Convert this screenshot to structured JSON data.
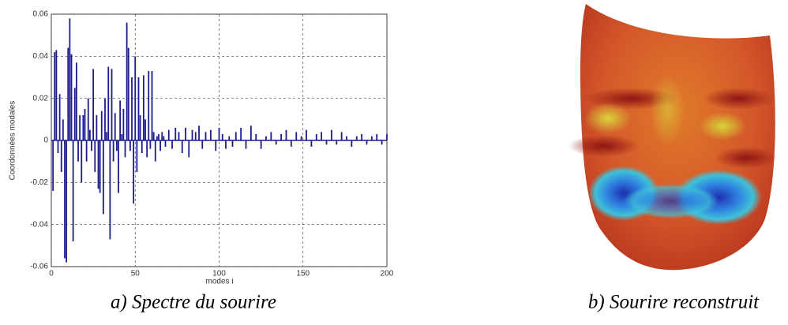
{
  "chart_data": {
    "type": "stem",
    "xlabel": "modes i",
    "ylabel": "Coordonnées modales",
    "x": [
      1,
      2,
      3,
      4,
      5,
      6,
      7,
      8,
      9,
      10,
      11,
      12,
      13,
      14,
      15,
      16,
      17,
      18,
      19,
      20,
      21,
      22,
      23,
      24,
      25,
      26,
      27,
      28,
      29,
      30,
      31,
      32,
      33,
      34,
      35,
      36,
      37,
      38,
      39,
      40,
      41,
      42,
      43,
      44,
      45,
      46,
      47,
      48,
      49,
      50,
      51,
      52,
      53,
      54,
      55,
      56,
      57,
      58,
      59,
      60,
      61,
      62,
      63,
      64,
      65,
      66,
      67,
      68,
      70,
      72,
      74,
      76,
      78,
      80,
      82,
      84,
      86,
      88,
      90,
      92,
      95,
      98,
      100,
      102,
      104,
      106,
      108,
      110,
      113,
      116,
      119,
      122,
      125,
      128,
      131,
      134,
      137,
      140,
      143,
      146,
      149,
      152,
      155,
      158,
      161,
      164,
      167,
      170,
      173,
      176,
      179,
      182,
      185,
      188,
      191,
      194,
      197,
      200
    ],
    "values": [
      -0.024,
      0.042,
      0.043,
      -0.006,
      0.022,
      -0.015,
      0.01,
      -0.056,
      -0.058,
      0.044,
      0.058,
      0.041,
      -0.048,
      0.025,
      0.037,
      -0.01,
      0.012,
      -0.02,
      0.012,
      0.015,
      -0.01,
      0.02,
      0.005,
      -0.005,
      0.034,
      -0.015,
      0.012,
      -0.023,
      -0.025,
      0.014,
      -0.035,
      0.02,
      0.004,
      0.035,
      -0.047,
      0.034,
      -0.01,
      0.013,
      -0.005,
      -0.025,
      0.019,
      0.003,
      0.015,
      -0.008,
      0.056,
      0.044,
      -0.005,
      0.03,
      -0.03,
      0.04,
      -0.015,
      0.03,
      0.012,
      -0.006,
      0.031,
      0.01,
      -0.008,
      0.033,
      -0.004,
      0.033,
      0.004,
      -0.01,
      0.002,
      0.003,
      -0.005,
      0.004,
      0.002,
      -0.003,
      0.005,
      -0.004,
      0.006,
      0.004,
      -0.006,
      0.006,
      -0.008,
      0.005,
      0.004,
      0.007,
      -0.004,
      0.004,
      0.005,
      -0.005,
      0.006,
      0.003,
      -0.004,
      0.002,
      -0.003,
      0.004,
      0.006,
      -0.004,
      0.007,
      0.003,
      -0.004,
      0.002,
      0.004,
      -0.002,
      0.003,
      0.005,
      -0.003,
      0.004,
      0.002,
      0.005,
      -0.003,
      0.003,
      0.004,
      -0.002,
      0.005,
      -0.002,
      0.004,
      0.002,
      -0.003,
      0.002,
      0.003,
      -0.002,
      0.002,
      0.003,
      -0.002,
      0.003
    ],
    "color": "#1c1c8a",
    "xlim": [
      0,
      200
    ],
    "xticks": [
      0,
      50,
      100,
      150,
      200
    ],
    "ylim": [
      -0.06,
      0.06
    ],
    "yticks": [
      -0.06,
      -0.04,
      -0.02,
      0,
      0.02,
      0.04,
      0.06
    ],
    "grid": true
  },
  "captions": [
    "a) Spectre du sourire",
    "b) Sourire reconstruit"
  ]
}
